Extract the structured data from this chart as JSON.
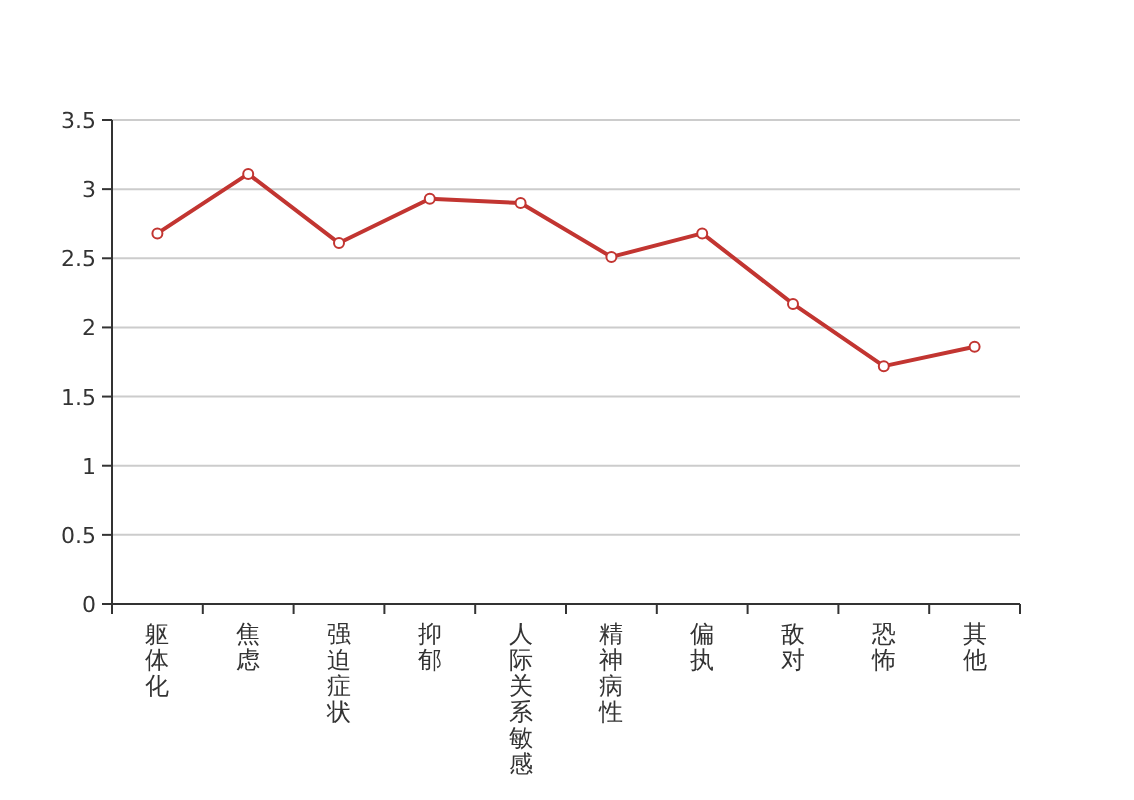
{
  "chart_data": {
    "type": "line",
    "categories": [
      "躯体化",
      "焦虑",
      "强迫症状",
      "抑郁",
      "人际关系敏感",
      "精神病性",
      "偏执",
      "敌对",
      "恐怖",
      "其他"
    ],
    "series": [
      {
        "color": "#c23531",
        "values": [
          2.68,
          3.11,
          2.61,
          2.93,
          2.9,
          2.51,
          2.68,
          2.17,
          1.72,
          1.86
        ]
      }
    ],
    "ylim": [
      0,
      3.5
    ],
    "yticks": [
      0,
      0.5,
      1,
      1.5,
      2,
      2.5,
      3,
      3.5
    ],
    "grid": "y",
    "marker": "circle",
    "line_style": "solid"
  }
}
